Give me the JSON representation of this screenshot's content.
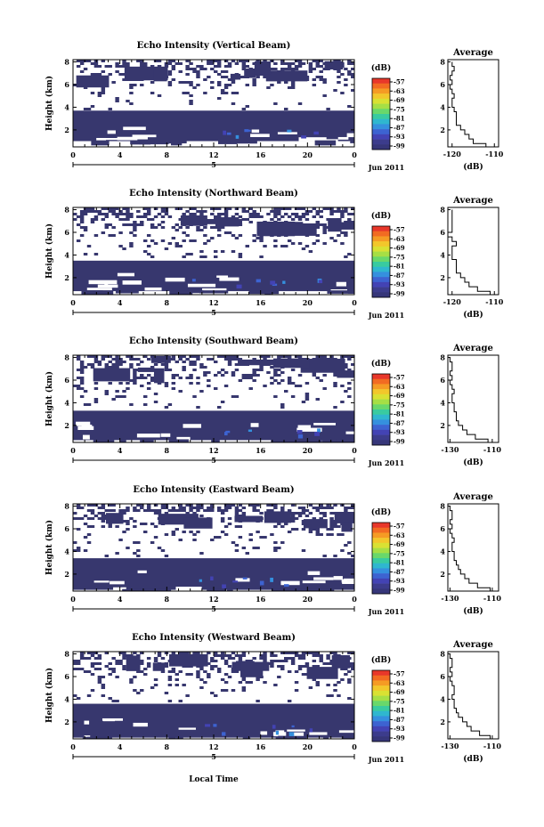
{
  "figure": {
    "xlabel": "Local Time",
    "date_label": "Jun 2011",
    "day_label": "5",
    "colorbar_unit": "(dB)",
    "colorbar_ticks": [
      "-57",
      "-63",
      "-69",
      "-75",
      "-81",
      "-87",
      "-93",
      "-99"
    ],
    "colorbar_colors": [
      "#e8372a",
      "#f26b22",
      "#f59b24",
      "#f2c72b",
      "#d9e133",
      "#a6df45",
      "#69d86b",
      "#39cba0",
      "#2fb7cf",
      "#3590de",
      "#3d63d1",
      "#4343b4",
      "#3c3c8c",
      "#363679"
    ],
    "fill_color": "#37376e"
  },
  "chart_data": [
    {
      "type": "heatmap",
      "title": "Echo Intensity (Vertical Beam)",
      "xlabel": "",
      "ylabel": "Height (km)",
      "xticks": [
        "0",
        "4",
        "8",
        "12",
        "16",
        "20",
        "0"
      ],
      "yticks": [
        "2",
        "4",
        "6",
        "8"
      ],
      "xlim": [
        0,
        24
      ],
      "ylim": [
        0.5,
        8.2
      ],
      "dense_layer_km": [
        1.0,
        3.7
      ],
      "average": {
        "title": "Average",
        "xlabel": "(dB)",
        "xticks": [
          "-120",
          "-110"
        ],
        "yticks": [
          "2",
          "4",
          "6",
          "8"
        ],
        "xlim": [
          -121,
          -109
        ],
        "ylim": [
          0.5,
          8.2
        ],
        "height_km": [
          0.5,
          0.8,
          1.2,
          1.6,
          2.0,
          2.4,
          2.8,
          3.2,
          3.6,
          4.0,
          4.4,
          4.8,
          5.2,
          5.6,
          6.0,
          6.4,
          6.8,
          7.2,
          7.6,
          8.0
        ],
        "echo_db": [
          -110,
          -112,
          -115,
          -116,
          -117,
          -118,
          -119,
          -119,
          -119,
          -119.5,
          -120,
          -120,
          -119.5,
          -120,
          -120.5,
          -120,
          -120.5,
          -120,
          -119.5,
          -120
        ]
      }
    },
    {
      "type": "heatmap",
      "title": "Echo Intensity (Northward Beam)",
      "xlabel": "",
      "ylabel": "Height (km)",
      "xticks": [
        "0",
        "4",
        "8",
        "12",
        "16",
        "20",
        "0"
      ],
      "yticks": [
        "2",
        "4",
        "6",
        "8"
      ],
      "xlim": [
        0,
        24
      ],
      "ylim": [
        0.5,
        8.2
      ],
      "dense_layer_km": [
        0.8,
        3.5
      ],
      "average": {
        "title": "Average",
        "xlabel": "(dB)",
        "xticks": [
          "-120",
          "-110"
        ],
        "yticks": [
          "2",
          "4",
          "6",
          "8"
        ],
        "xlim": [
          -121,
          -109
        ],
        "ylim": [
          0.5,
          8.2
        ],
        "height_km": [
          0.5,
          0.8,
          1.2,
          1.6,
          2.0,
          2.4,
          2.8,
          3.2,
          3.6,
          4.0,
          4.4,
          4.8,
          5.2,
          5.6,
          6.0,
          6.4,
          6.8,
          7.2,
          7.6,
          8.0
        ],
        "echo_db": [
          -110,
          -111,
          -114,
          -116,
          -117,
          -118,
          -119,
          -119,
          -119,
          -120,
          -120,
          -120,
          -119,
          -120,
          -121,
          -120,
          -120,
          -120,
          -120,
          -120
        ]
      }
    },
    {
      "type": "heatmap",
      "title": "Echo Intensity (Southward Beam)",
      "xlabel": "",
      "ylabel": "Height (km)",
      "xticks": [
        "0",
        "4",
        "8",
        "12",
        "16",
        "20",
        "0"
      ],
      "yticks": [
        "2",
        "4",
        "6",
        "8"
      ],
      "xlim": [
        0,
        24
      ],
      "ylim": [
        0.5,
        8.2
      ],
      "dense_layer_km": [
        0.7,
        3.3
      ],
      "average": {
        "title": "Average",
        "xlabel": "(dB)",
        "xticks": [
          "-130",
          "-110"
        ],
        "yticks": [
          "2",
          "4",
          "6",
          "8"
        ],
        "xlim": [
          -131,
          -107
        ],
        "ylim": [
          0.5,
          8.2
        ],
        "height_km": [
          0.5,
          0.8,
          1.2,
          1.6,
          2.0,
          2.4,
          2.8,
          3.2,
          3.6,
          4.0,
          4.4,
          4.8,
          5.2,
          5.6,
          6.0,
          6.4,
          6.8,
          7.2,
          7.6,
          8.0
        ],
        "echo_db": [
          -108,
          -112,
          -118,
          -122,
          -124,
          -126,
          -127,
          -127,
          -128,
          -128,
          -129,
          -129,
          -128,
          -129,
          -130,
          -129,
          -130,
          -129,
          -129,
          -130
        ]
      }
    },
    {
      "type": "heatmap",
      "title": "Echo Intensity (Eastward Beam)",
      "xlabel": "",
      "ylabel": "Height (km)",
      "xticks": [
        "0",
        "4",
        "8",
        "12",
        "16",
        "20",
        "0"
      ],
      "yticks": [
        "2",
        "4",
        "6",
        "8"
      ],
      "xlim": [
        0,
        24
      ],
      "ylim": [
        0.5,
        8.2
      ],
      "dense_layer_km": [
        0.6,
        3.4
      ],
      "average": {
        "title": "Average",
        "xlabel": "(dB)",
        "xticks": [
          "-130",
          "-110"
        ],
        "yticks": [
          "2",
          "4",
          "6",
          "8"
        ],
        "xlim": [
          -131,
          -107
        ],
        "ylim": [
          0.5,
          8.2
        ],
        "height_km": [
          0.5,
          0.8,
          1.2,
          1.6,
          2.0,
          2.4,
          2.8,
          3.2,
          3.6,
          4.0,
          4.4,
          4.8,
          5.2,
          5.6,
          6.0,
          6.4,
          6.8,
          7.2,
          7.6,
          8.0
        ],
        "echo_db": [
          -108,
          -111,
          -117,
          -121,
          -123,
          -125,
          -126,
          -127,
          -128,
          -128,
          -129,
          -129,
          -128,
          -129,
          -130,
          -129,
          -130,
          -129,
          -129,
          -130
        ]
      }
    },
    {
      "type": "heatmap",
      "title": "Echo Intensity (Westward Beam)",
      "xlabel": "",
      "ylabel": "Height (km)",
      "xticks": [
        "0",
        "4",
        "8",
        "12",
        "16",
        "20",
        "0"
      ],
      "yticks": [
        "2",
        "4",
        "6",
        "8"
      ],
      "xlim": [
        0,
        24
      ],
      "ylim": [
        0.5,
        8.2
      ],
      "dense_layer_km": [
        0.6,
        3.6
      ],
      "average": {
        "title": "Average",
        "xlabel": "(dB)",
        "xticks": [
          "-130",
          "-110"
        ],
        "yticks": [
          "2",
          "4",
          "6",
          "8"
        ],
        "xlim": [
          -131,
          -107
        ],
        "ylim": [
          0.5,
          8.2
        ],
        "height_km": [
          0.5,
          0.8,
          1.2,
          1.6,
          2.0,
          2.4,
          2.8,
          3.2,
          3.6,
          4.0,
          4.4,
          4.8,
          5.2,
          5.6,
          6.0,
          6.4,
          6.8,
          7.2,
          7.6,
          8.0
        ],
        "echo_db": [
          -108,
          -111,
          -116,
          -120,
          -122,
          -124,
          -126,
          -127,
          -128,
          -128,
          -129,
          -128,
          -128,
          -129,
          -130,
          -129,
          -130,
          -129,
          -129,
          -130
        ]
      }
    }
  ]
}
